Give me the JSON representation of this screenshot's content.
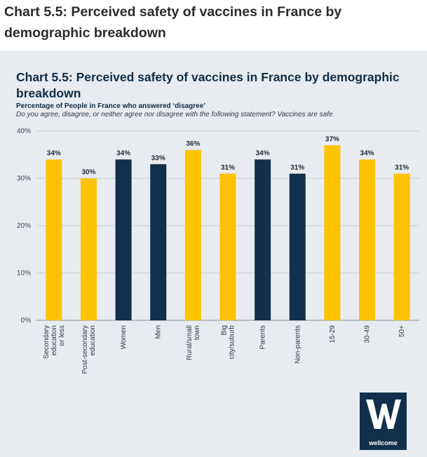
{
  "page": {
    "heading": "Chart 5.5: Perceived safety of vaccines in France by demographic breakdown"
  },
  "colors": {
    "yellow": "#fdc301",
    "navy": "#12304b",
    "panel_bg": "#e8ecf0",
    "gridline": "#c8ced4"
  },
  "logo": {
    "icon": "wellcome-w-icon",
    "text": "wellcome"
  },
  "chart_data": {
    "type": "bar",
    "title": "Chart 5.5: Perceived safety of vaccines in France by demographic breakdown",
    "subtitle": "Percentage of People in France who answered ‘disagree’",
    "question": "Do you agree, disagree, or neither agree nor disagree with the following statement? Vaccines are safe",
    "xlabel": "",
    "ylabel": "",
    "ylim": [
      0,
      40
    ],
    "yticks": [
      0,
      10,
      20,
      30,
      40
    ],
    "ytick_labels": [
      "0%",
      "10%",
      "20%",
      "30%",
      "40%"
    ],
    "grid": true,
    "legend": "none",
    "bars": [
      {
        "label": "Secondary education or less",
        "value": 34,
        "value_label": "34%",
        "color": "yellow"
      },
      {
        "label": "Post-secondary education",
        "value": 30,
        "value_label": "30%",
        "color": "yellow"
      },
      {
        "label": "Women",
        "value": 34,
        "value_label": "34%",
        "color": "navy"
      },
      {
        "label": "Men",
        "value": 33,
        "value_label": "33%",
        "color": "navy"
      },
      {
        "label": "Rural/small town",
        "value": 36,
        "value_label": "36%",
        "color": "yellow"
      },
      {
        "label": "Big city/suburb",
        "value": 31,
        "value_label": "31%",
        "color": "yellow"
      },
      {
        "label": "Parents",
        "value": 34,
        "value_label": "34%",
        "color": "navy"
      },
      {
        "label": "Non-parents",
        "value": 31,
        "value_label": "31%",
        "color": "navy"
      },
      {
        "label": "15-29",
        "value": 37,
        "value_label": "37%",
        "color": "yellow"
      },
      {
        "label": "30-49",
        "value": 34,
        "value_label": "34%",
        "color": "yellow"
      },
      {
        "label": "50+",
        "value": 31,
        "value_label": "31%",
        "color": "yellow"
      }
    ]
  }
}
